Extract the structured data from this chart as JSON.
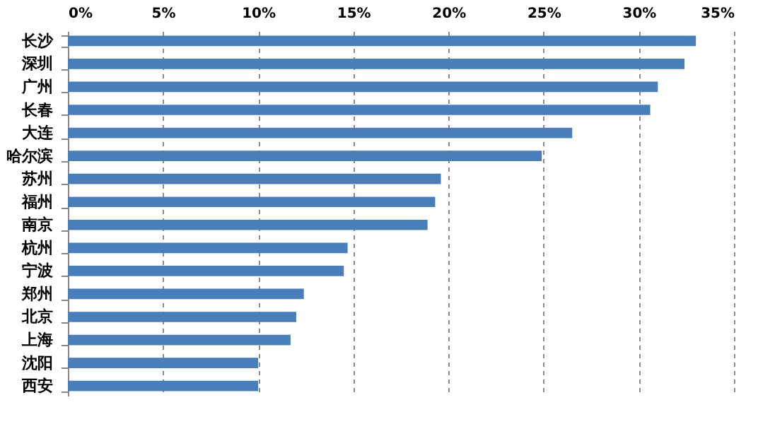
{
  "chart_data": {
    "type": "bar",
    "orientation": "horizontal",
    "categories": [
      "长沙",
      "深圳",
      "广州",
      "长春",
      "大连",
      "哈尔滨",
      "苏州",
      "福州",
      "南京",
      "杭州",
      "宁波",
      "郑州",
      "北京",
      "上海",
      "沈阳",
      "西安"
    ],
    "values": [
      33.0,
      32.4,
      31.0,
      30.6,
      26.5,
      24.9,
      19.6,
      19.3,
      18.9,
      14.7,
      14.5,
      12.4,
      12.0,
      11.7,
      10.0,
      10.0
    ],
    "color": "#4a7ebb",
    "xlim": [
      0,
      35
    ],
    "xticks": [
      {
        "value": 0,
        "label": "0%"
      },
      {
        "value": 5,
        "label": "5%"
      },
      {
        "value": 10,
        "label": "10%"
      },
      {
        "value": 15,
        "label": "15%"
      },
      {
        "value": 20,
        "label": "20%"
      },
      {
        "value": 25,
        "label": "25%"
      },
      {
        "value": 30,
        "label": "30%"
      },
      {
        "value": 35,
        "label": "35%"
      }
    ],
    "grid": "x"
  }
}
